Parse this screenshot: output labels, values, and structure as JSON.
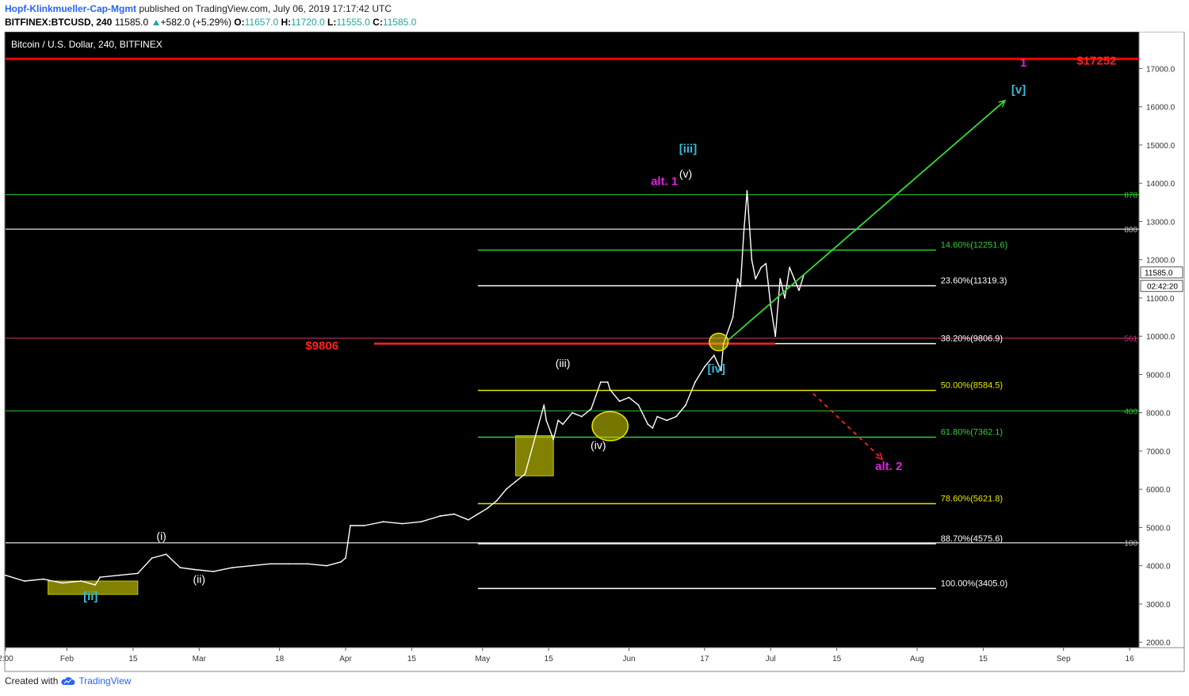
{
  "header": {
    "author": "Hopf-Klinkmueller-Cap-Mgmt",
    "published": " published on TradingView.com, July 06, 2019 17:17:42 UTC",
    "symbol": "BITFINEX:BTCUSD, 240",
    "price": "11585.0",
    "change": "+582.0 (+5.29%)",
    "open_label": "O:",
    "open": "11657.0",
    "high_label": "H:",
    "high": "11720.0",
    "low_label": "L:",
    "low": "11555.0",
    "close_label": "C:",
    "close": "11585.0"
  },
  "footer": {
    "created": "Created with",
    "brand": "TradingView",
    "logo_icon": "tradingview-cloud-icon"
  },
  "colors": {
    "bg": "#000000",
    "price": "#ffffff",
    "accent_blue": "#2962ff"
  },
  "chart_data": {
    "type": "line",
    "title": "Bitcoin / U.S. Dollar, 240, BITFINEX",
    "xlabel": "",
    "ylabel": "",
    "ylim": [
      1900,
      17900
    ],
    "xlim": [
      0,
      240
    ],
    "grid": false,
    "x_ticks": [
      {
        "x": 0,
        "label": "2:00"
      },
      {
        "x": 13,
        "label": "Feb"
      },
      {
        "x": 27,
        "label": "15"
      },
      {
        "x": 41,
        "label": "Mar"
      },
      {
        "x": 58,
        "label": "18"
      },
      {
        "x": 72,
        "label": "Apr"
      },
      {
        "x": 86,
        "label": "15"
      },
      {
        "x": 101,
        "label": "May"
      },
      {
        "x": 115,
        "label": "15"
      },
      {
        "x": 132,
        "label": "Jun"
      },
      {
        "x": 148,
        "label": "17"
      },
      {
        "x": 162,
        "label": "Jul"
      },
      {
        "x": 176,
        "label": "15"
      },
      {
        "x": 193,
        "label": "Aug"
      },
      {
        "x": 207,
        "label": "15"
      },
      {
        "x": 224,
        "label": "Sep"
      },
      {
        "x": 238,
        "label": "16"
      }
    ],
    "y_ticks": [
      2000,
      3000,
      4000,
      5000,
      6000,
      7000,
      8000,
      9000,
      10000,
      11000,
      12000,
      13000,
      14000,
      15000,
      16000,
      17000
    ],
    "y_tick_suffix": ".0",
    "series": [
      {
        "color": "#ffffff",
        "x": [
          0,
          4,
          8,
          12,
          16,
          19,
          20,
          24,
          28,
          31,
          34,
          37,
          40,
          44,
          48,
          52,
          56,
          60,
          64,
          68,
          71,
          72,
          73,
          76,
          80,
          84,
          88,
          92,
          95,
          98,
          100,
          102,
          104,
          106,
          108,
          110,
          112,
          114,
          114.5,
          116,
          117,
          118,
          120,
          122,
          124,
          126,
          127.5,
          128,
          130,
          132,
          134,
          136,
          137,
          138,
          140,
          142,
          144,
          146,
          148,
          150,
          151.5,
          152,
          154,
          155,
          155.6,
          156.3,
          157,
          158,
          158.8,
          160,
          161,
          162,
          163,
          164,
          165,
          166,
          167,
          168,
          169
        ],
        "y": [
          3750,
          3600,
          3650,
          3550,
          3600,
          3500,
          3700,
          3750,
          3800,
          4200,
          4300,
          3950,
          3900,
          3850,
          3950,
          4000,
          4050,
          4050,
          4050,
          4000,
          4100,
          4200,
          5050,
          5050,
          5150,
          5100,
          5150,
          5300,
          5350,
          5200,
          5350,
          5500,
          5700,
          6000,
          6200,
          6400,
          7300,
          8200,
          7800,
          7300,
          7800,
          7700,
          8000,
          7900,
          8100,
          8800,
          8800,
          8600,
          8300,
          8400,
          8200,
          7700,
          7600,
          7900,
          7800,
          7900,
          8200,
          8800,
          9200,
          9500,
          9100,
          9800,
          10500,
          11500,
          11300,
          12700,
          13800,
          12000,
          11500,
          11800,
          11900,
          10800,
          10000,
          11500,
          11000,
          11800,
          11500,
          11200,
          11600
        ]
      }
    ],
    "fib_levels": [
      {
        "label": "14.60%(12251.6)",
        "value": 12251.6,
        "color": "#33cc33"
      },
      {
        "label": "23.60%(11319.3)",
        "value": 11319.3,
        "color": "#ffffff"
      },
      {
        "label": "38.20%(9806.9)",
        "value": 9806.9,
        "color": "#ffffff"
      },
      {
        "label": "50.00%(8584.5)",
        "value": 8584.5,
        "color": "#e6e600"
      },
      {
        "label": "61.80%(7362.1)",
        "value": 7362.1,
        "color": "#33cc33"
      },
      {
        "label": "78.60%(5621.8)",
        "value": 5621.8,
        "color": "#e6e600"
      },
      {
        "label": "88.70%(4575.6)",
        "value": 4575.6,
        "color": "#ffffff"
      },
      {
        "label": "100.00%(3405.0)",
        "value": 3405.0,
        "color": "#ffffff"
      }
    ],
    "fib_x_range": [
      100,
      197
    ],
    "horizontal_lines": [
      {
        "value": 17252,
        "color": "#ff0000",
        "label": "",
        "width": 3
      },
      {
        "value": 13700,
        "color": "#33cc33",
        "label": "878",
        "width": 1
      },
      {
        "value": 12800,
        "color": "#bbbbbb",
        "label": "800",
        "width": 1.5
      },
      {
        "value": 9950,
        "color": "#cc3377",
        "label": "561",
        "width": 1
      },
      {
        "value": 8050,
        "color": "#33cc33",
        "label": "400",
        "width": 1
      },
      {
        "value": 4600,
        "color": "#bbbbbb",
        "label": "100",
        "width": 1.5
      }
    ],
    "support_line": {
      "value": 9806,
      "x_range": [
        78,
        163
      ],
      "color": "#ff2222"
    },
    "price_label": "11585.0",
    "time_label": "02:42:20",
    "annotations": [
      {
        "text": "(i)",
        "x": 33,
        "y": 4680,
        "color": "#ffffff"
      },
      {
        "text": "(ii)",
        "x": 41,
        "y": 3550,
        "color": "#ffffff"
      },
      {
        "text": "[ii]",
        "x": 18,
        "y": 3100,
        "color": "#33bbdd"
      },
      {
        "text": "(iii)",
        "x": 118,
        "y": 9200,
        "color": "#ffffff"
      },
      {
        "text": "(iv)",
        "x": 125.5,
        "y": 7050,
        "color": "#ffffff"
      },
      {
        "text": "(v)",
        "x": 144,
        "y": 14150,
        "color": "#ffffff"
      },
      {
        "text": "[iii]",
        "x": 144.5,
        "y": 14800,
        "color": "#33bbdd"
      },
      {
        "text": "alt. 1",
        "x": 139.5,
        "y": 13950,
        "color": "#dd22dd"
      },
      {
        "text": "[iv]",
        "x": 150.5,
        "y": 9050,
        "color": "#33bbdd"
      },
      {
        "text": "[v]",
        "x": 214.5,
        "y": 16350,
        "color": "#33bbdd"
      },
      {
        "text": "1",
        "x": 215.5,
        "y": 17050,
        "color": "#dd22dd"
      },
      {
        "text": "$17252",
        "x": 231,
        "y": 17100,
        "color": "#ff2222"
      },
      {
        "text": "$9806",
        "x": 67,
        "y": 9650,
        "color": "#ff2222"
      },
      {
        "text": "alt. 2",
        "x": 187,
        "y": 6500,
        "color": "#dd22dd"
      }
    ],
    "arrows": [
      {
        "from": [
          153,
          9900
        ],
        "to": [
          211.5,
          16150
        ],
        "color": "#33dd33",
        "dashed": false
      },
      {
        "from": [
          171,
          8500
        ],
        "to": [
          185.5,
          6800
        ],
        "color": "#ff2222",
        "dashed": true
      }
    ],
    "boxes": [
      {
        "x0": 9,
        "x1": 28,
        "y0": 3250,
        "y1": 3600,
        "color": "#c8c800"
      },
      {
        "x0": 108,
        "x1": 116,
        "y0": 6350,
        "y1": 7400,
        "color": "#c8c800"
      }
    ],
    "circles": [
      {
        "x": 128,
        "y": 7650,
        "rx": 3.8,
        "ry": 380
      },
      {
        "x": 151,
        "y": 9850,
        "rx": 2,
        "ry": 230
      }
    ]
  }
}
